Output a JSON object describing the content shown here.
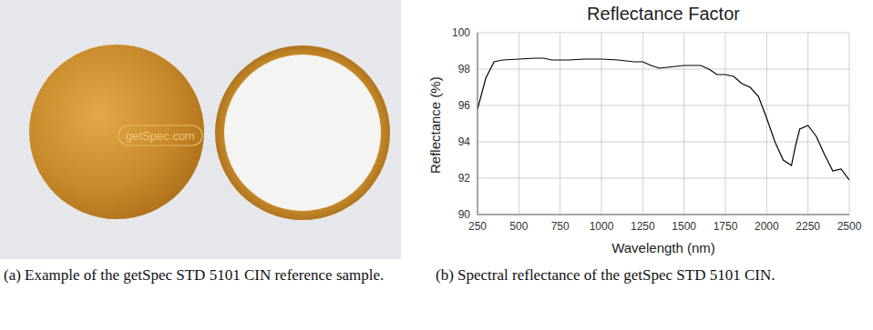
{
  "chart_data": {
    "type": "line",
    "title": "Reflectance Factor",
    "x_label": "Wavelength (nm)",
    "y_label": "Reflectance (%)",
    "x": [
      250,
      300,
      350,
      400,
      500,
      600,
      650,
      700,
      800,
      900,
      1000,
      1100,
      1200,
      1250,
      1300,
      1350,
      1400,
      1500,
      1600,
      1650,
      1700,
      1750,
      1800,
      1850,
      1900,
      1950,
      2000,
      2050,
      2100,
      2150,
      2175,
      2200,
      2250,
      2300,
      2350,
      2400,
      2450,
      2500
    ],
    "values": [
      95.8,
      97.5,
      98.4,
      98.5,
      98.55,
      98.6,
      98.6,
      98.5,
      98.5,
      98.55,
      98.55,
      98.5,
      98.4,
      98.4,
      98.2,
      98.05,
      98.1,
      98.2,
      98.2,
      98.0,
      97.7,
      97.7,
      97.6,
      97.2,
      97.0,
      96.5,
      95.3,
      94.0,
      93.0,
      92.7,
      93.8,
      94.7,
      94.9,
      94.3,
      93.3,
      92.4,
      92.5,
      91.9
    ],
    "color": "#000000",
    "xlim": [
      250,
      2500
    ],
    "xticks": [
      250,
      500,
      750,
      1000,
      1250,
      1500,
      1750,
      2000,
      2250,
      2500
    ],
    "ylim": [
      90,
      100
    ],
    "yticks": [
      90,
      92,
      94,
      96,
      98,
      100
    ],
    "grid": true
  },
  "photo": {
    "logo": "getSpec.com"
  },
  "captions": {
    "a": "(a) Example of the getSpec STD 5101 CIN reference sample.",
    "b": "(b) Spectral reflectance of the getSpec STD 5101 CIN."
  }
}
